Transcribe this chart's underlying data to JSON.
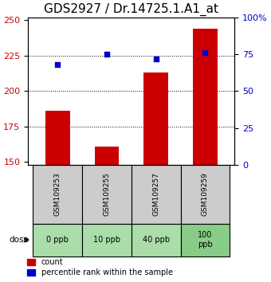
{
  "title": "GDS2927 / Dr.14725.1.A1_at",
  "samples": [
    "GSM109253",
    "GSM109255",
    "GSM109257",
    "GSM109259"
  ],
  "doses": [
    "0 ppb",
    "10 ppb",
    "40 ppb",
    "100\nppb"
  ],
  "bar_values": [
    186,
    161,
    213,
    244
  ],
  "dot_values": [
    68,
    75,
    72,
    76
  ],
  "ylim_left": [
    148,
    252
  ],
  "ylim_right": [
    0,
    100
  ],
  "yticks_left": [
    150,
    175,
    200,
    225,
    250
  ],
  "yticks_right": [
    0,
    25,
    50,
    75,
    100
  ],
  "bar_color": "#cc0000",
  "dot_color": "#0000cc",
  "sample_box_color": "#cccccc",
  "dose_box_color": "#aaddaa",
  "dose_box_color_last": "#88cc88",
  "title_fontsize": 11,
  "tick_fontsize": 8,
  "legend_fontsize": 7
}
